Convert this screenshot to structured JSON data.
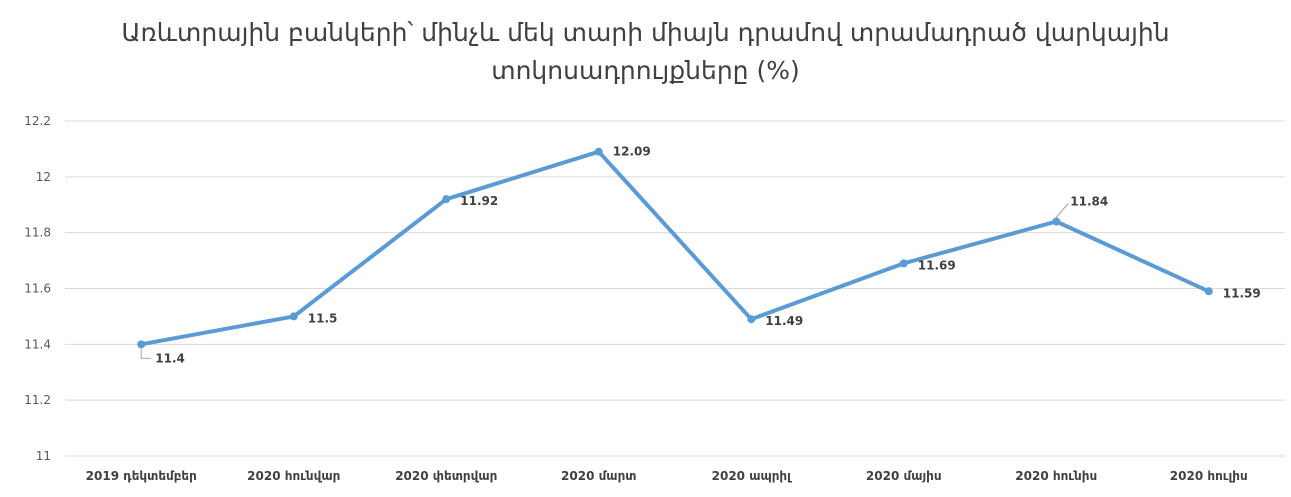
{
  "chart_data": {
    "type": "line",
    "title_lines": [
      "Առևտրային բանկերի՝ մինչև մեկ տարի միայն դրամով տրամադրած վարկային",
      "տոկոսադրույքները (%)"
    ],
    "categories": [
      "2019 դեկտեմբեր",
      "2020 հունվար",
      "2020 փետրվար",
      "2020 մարտ",
      "2020 ապրիլ",
      "2020 մայիս",
      "2020 հունիս",
      "2020 հուլիս"
    ],
    "series": [
      {
        "values": [
          11.4,
          11.5,
          11.92,
          12.09,
          11.49,
          11.69,
          11.84,
          11.59
        ],
        "color": "#5b9bd5"
      }
    ],
    "data_labels": [
      "11.4",
      "11.5",
      "11.92",
      "12.09",
      "11.49",
      "11.69",
      "11.84",
      "11.59"
    ],
    "ylim": [
      11,
      12.2
    ],
    "yticks": [
      "11",
      "11.2",
      "11.4",
      "11.6",
      "11.8",
      "12",
      "12.2"
    ],
    "grid": true,
    "legend": "none"
  }
}
